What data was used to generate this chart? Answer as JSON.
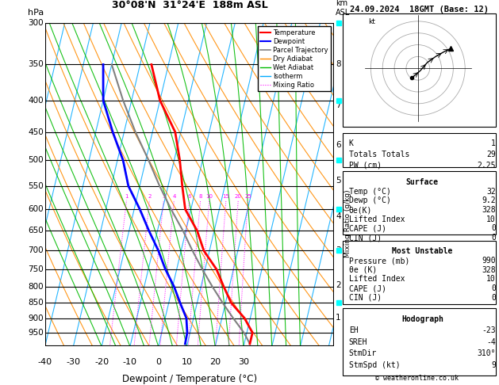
{
  "title_left": "30°08'N  31°24'E  188m ASL",
  "title_right": "24.09.2024  18GMT (Base: 12)",
  "xlabel": "Dewpoint / Temperature (°C)",
  "ylabel_left": "hPa",
  "temp_min": -40,
  "temp_max": 35,
  "pmin": 300,
  "pmax": 1000,
  "temp_color": "#ff0000",
  "dewp_color": "#0000ff",
  "parcel_color": "#808080",
  "dry_adiabat_color": "#ff8c00",
  "wet_adiabat_color": "#00bb00",
  "isotherm_color": "#00aaff",
  "mixing_ratio_color": "#ff00ff",
  "temp_profile_T": [
    32,
    32,
    28,
    22,
    18,
    14,
    8,
    4,
    -2,
    -5,
    -8,
    -12,
    -20,
    -26
  ],
  "temp_profile_P": [
    990,
    950,
    900,
    850,
    800,
    750,
    700,
    650,
    600,
    550,
    500,
    450,
    400,
    350
  ],
  "dewp_profile_T": [
    9.2,
    9.0,
    7.5,
    4.0,
    0.5,
    -4.0,
    -8.0,
    -13.0,
    -18.0,
    -24.0,
    -28.0,
    -34.0,
    -40.0,
    -43.0
  ],
  "dewp_profile_P": [
    990,
    950,
    900,
    850,
    800,
    750,
    700,
    650,
    600,
    550,
    500,
    450,
    400,
    350
  ],
  "parcel_profile_T": [
    32,
    29,
    24,
    19,
    14,
    9,
    4,
    -1,
    -7,
    -13,
    -19,
    -26,
    -33,
    -40
  ],
  "parcel_profile_P": [
    990,
    950,
    900,
    850,
    800,
    750,
    700,
    650,
    600,
    550,
    500,
    450,
    400,
    350
  ],
  "km_levels": [
    1,
    2,
    3,
    4,
    5,
    6,
    7,
    8
  ],
  "km_pressures": [
    898,
    795,
    700,
    616,
    540,
    472,
    408,
    350
  ],
  "mixing_ratio_values": [
    1,
    2,
    3,
    4,
    6,
    8,
    10,
    15,
    20,
    25
  ],
  "info_K": 1,
  "info_TT": 29,
  "info_PW": 2.25,
  "info_surface_temp": 32,
  "info_surface_dewp": 9.2,
  "info_surface_theta_e": 328,
  "info_surface_LI": 10,
  "info_surface_CAPE": 0,
  "info_surface_CIN": 0,
  "info_mu_pressure": 990,
  "info_mu_theta_e": 328,
  "info_mu_LI": 10,
  "info_mu_CAPE": 0,
  "info_mu_CIN": 0,
  "info_hodo_EH": -23,
  "info_hodo_SREH": -4,
  "info_hodo_StmDir": "310°",
  "info_hodo_StmSpd": 9,
  "copyright": "© weatheronline.co.uk"
}
